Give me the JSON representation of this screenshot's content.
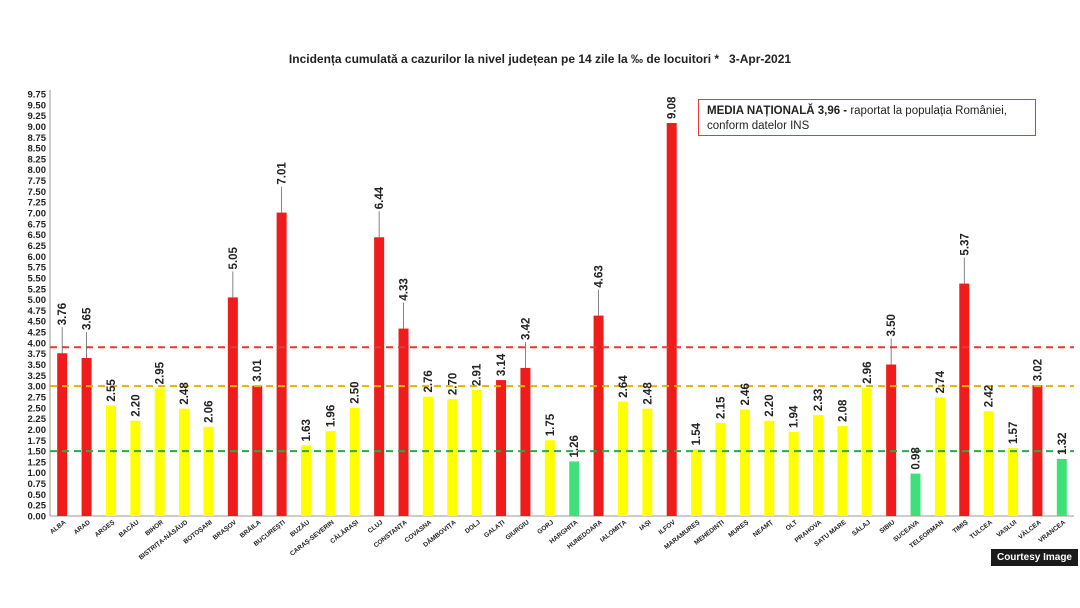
{
  "chart_data": {
    "type": "bar",
    "title": "Incidența cumulată a cazurilor la nivel județean pe 14 zile la ‰ de locuitori *   3-Apr-2021",
    "ylim": [
      0,
      9.75
    ],
    "y_ticks": [
      "0.00",
      "0.25",
      "0.50",
      "0.75",
      "1.00",
      "1.25",
      "1.50",
      "1.75",
      "2.00",
      "2.25",
      "2.50",
      "2.75",
      "3.00",
      "3.25",
      "3.50",
      "3.75",
      "4.00",
      "4.25",
      "4.50",
      "4.75",
      "5.00",
      "5.25",
      "5.50",
      "5.75",
      "6.00",
      "6.25",
      "6.50",
      "6.75",
      "7.00",
      "7.25",
      "7.50",
      "7.75",
      "8.00",
      "8.25",
      "8.50",
      "8.75",
      "9.00",
      "9.25",
      "9.50",
      "9.75"
    ],
    "categories": [
      "ALBA",
      "ARAD",
      "ARGEȘ",
      "BACĂU",
      "BIHOR",
      "BISTRIȚA-NĂSĂUD",
      "BOTOȘANI",
      "BRAȘOV",
      "BRĂILA",
      "BUCUREȘTI",
      "BUZĂU",
      "CARAȘ-SEVERIN",
      "CĂLĂRAȘI",
      "CLUJ",
      "CONSTANȚA",
      "COVASNA",
      "DÂMBOVIȚA",
      "DOLJ",
      "GALAȚI",
      "GIURGIU",
      "GORJ",
      "HARGHITA",
      "HUNEDOARA",
      "IALOMIȚA",
      "IAȘI",
      "ILFOV",
      "MARAMUREȘ",
      "MEHEDINȚI",
      "MUREȘ",
      "NEAMȚ",
      "OLT",
      "PRAHOVA",
      "SATU MARE",
      "SĂLAJ",
      "SIBIU",
      "SUCEAVA",
      "TELEORMAN",
      "TIMIȘ",
      "TULCEA",
      "VASLUI",
      "VÂLCEA",
      "VRANCEA"
    ],
    "values": [
      3.76,
      3.65,
      2.55,
      2.2,
      2.95,
      2.48,
      2.06,
      5.05,
      3.01,
      7.01,
      1.63,
      1.96,
      2.5,
      6.44,
      4.33,
      2.76,
      2.7,
      2.91,
      3.14,
      3.42,
      1.75,
      1.26,
      4.63,
      2.64,
      2.48,
      9.08,
      1.54,
      2.15,
      2.46,
      2.2,
      1.94,
      2.33,
      2.08,
      2.96,
      3.5,
      0.98,
      2.74,
      5.37,
      2.42,
      1.57,
      3.02,
      1.32
    ],
    "value_labels": [
      "3.76",
      "3.65",
      "2.55",
      "2.20",
      "2.95",
      "2.48",
      "2.06",
      "5.05",
      "3.01",
      "7.01",
      "1.63",
      "1.96",
      "2.50",
      "6.44",
      "4.33",
      "2.76",
      "2.70",
      "2.91",
      "3.14",
      "3.42",
      "1.75",
      "1.26",
      "4.63",
      "2.64",
      "2.48",
      "9.08",
      "1.54",
      "2.15",
      "2.46",
      "2.20",
      "1.94",
      "2.33",
      "2.08",
      "2.96",
      "3.50",
      "0.98",
      "2.74",
      "5.37",
      "2.42",
      "1.57",
      "3.02",
      "1.32"
    ],
    "reference_lines": [
      {
        "value": 3.9,
        "color": "#e53935"
      },
      {
        "value": 3.0,
        "color": "#e0b400"
      },
      {
        "value": 1.5,
        "color": "#2ea84a"
      }
    ],
    "colors": {
      "high": "#f01c1c",
      "medium": "#ffff00",
      "low": "#3fe07a"
    },
    "thresholds": {
      "high": 3.0,
      "low": 1.5
    },
    "grid": false,
    "media_box": {
      "bold": "MEDIA NAȚIONALĂ  3,96 -",
      "text": " raportat la populația României, conform datelor INS"
    }
  },
  "credit": "Courtesy Image"
}
